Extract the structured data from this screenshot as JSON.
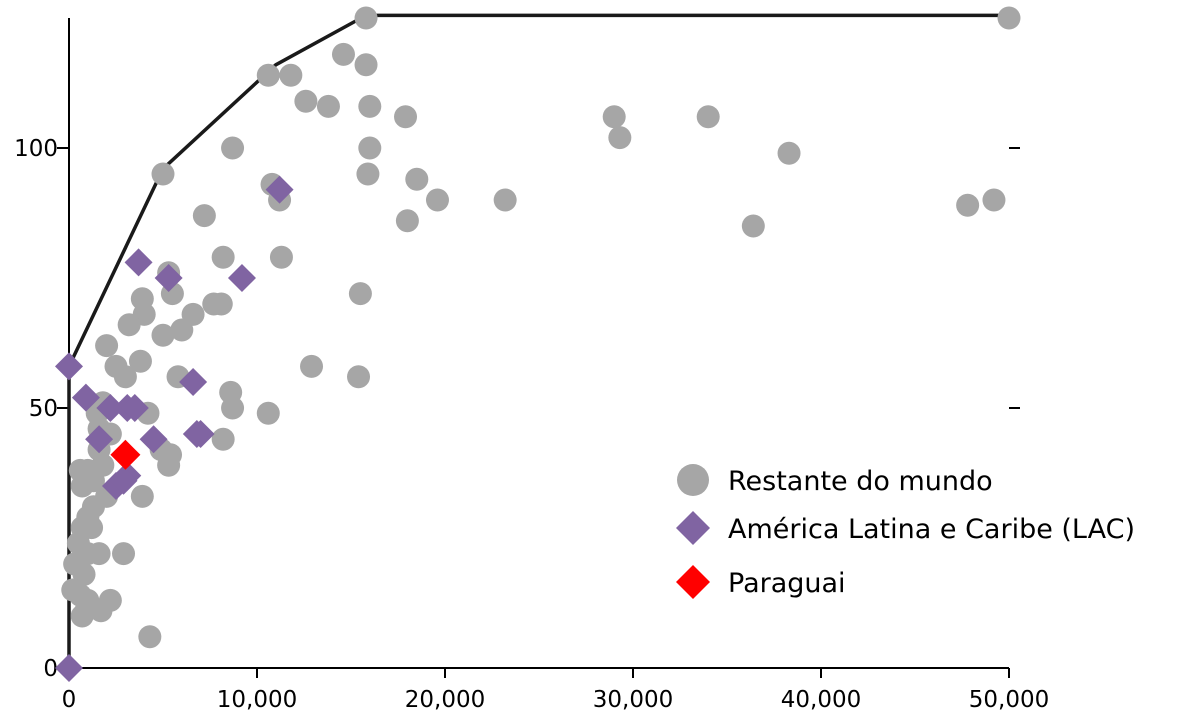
{
  "chart_data": {
    "type": "scatter",
    "title": "",
    "xlabel": "",
    "ylabel": "",
    "xlim": [
      0,
      50000
    ],
    "ylim": [
      0,
      125
    ],
    "x_ticks": [
      0,
      10000,
      20000,
      30000,
      40000,
      50000
    ],
    "x_tick_labels": [
      "0",
      "10,000",
      "20,000",
      "30,000",
      "40,000",
      "50,000"
    ],
    "y_ticks": [
      0,
      50,
      100
    ],
    "y_tick_labels": [
      "0",
      "50",
      "100"
    ],
    "grid": false,
    "legend_position": "bottom-right",
    "frontier": {
      "color": "#1a1a1a",
      "points": [
        [
          0,
          0
        ],
        [
          0,
          58
        ],
        [
          5000,
          96
        ],
        [
          11000,
          116
        ],
        [
          15800,
          125.5
        ],
        [
          50000,
          125.5
        ]
      ]
    },
    "series": [
      {
        "name": "Restante do mundo",
        "marker": "circle",
        "color": "#a6a6a6",
        "points": [
          [
            15800,
            125
          ],
          [
            50000,
            125
          ],
          [
            14600,
            118
          ],
          [
            15800,
            116
          ],
          [
            10600,
            114
          ],
          [
            11800,
            114
          ],
          [
            16000,
            108
          ],
          [
            12600,
            109
          ],
          [
            13800,
            108
          ],
          [
            17900,
            106
          ],
          [
            29000,
            106
          ],
          [
            29300,
            102
          ],
          [
            34000,
            106
          ],
          [
            38300,
            99
          ],
          [
            8700,
            100
          ],
          [
            5000,
            95
          ],
          [
            16000,
            100
          ],
          [
            15900,
            95
          ],
          [
            10800,
            93
          ],
          [
            11200,
            90
          ],
          [
            18500,
            94
          ],
          [
            19600,
            90
          ],
          [
            23200,
            90
          ],
          [
            49200,
            90
          ],
          [
            47800,
            89
          ],
          [
            18000,
            86
          ],
          [
            36400,
            85
          ],
          [
            7200,
            87
          ],
          [
            11300,
            79
          ],
          [
            8200,
            79
          ],
          [
            5300,
            76
          ],
          [
            15500,
            72
          ],
          [
            3900,
            71
          ],
          [
            5500,
            72
          ],
          [
            4000,
            68
          ],
          [
            6600,
            68
          ],
          [
            7700,
            70
          ],
          [
            8100,
            70
          ],
          [
            3200,
            66
          ],
          [
            5000,
            64
          ],
          [
            6000,
            65
          ],
          [
            2000,
            62
          ],
          [
            2500,
            58
          ],
          [
            3800,
            59
          ],
          [
            12900,
            58
          ],
          [
            5800,
            56
          ],
          [
            15400,
            56
          ],
          [
            3000,
            56
          ],
          [
            8600,
            53
          ],
          [
            8700,
            50
          ],
          [
            10600,
            49
          ],
          [
            1800,
            51
          ],
          [
            1500,
            49
          ],
          [
            4200,
            49
          ],
          [
            1600,
            46
          ],
          [
            8200,
            44
          ],
          [
            2200,
            45
          ],
          [
            4900,
            42
          ],
          [
            5400,
            41
          ],
          [
            5300,
            39
          ],
          [
            1600,
            42
          ],
          [
            1800,
            39
          ],
          [
            600,
            38
          ],
          [
            1000,
            38
          ],
          [
            1300,
            36
          ],
          [
            700,
            35
          ],
          [
            2000,
            33
          ],
          [
            3900,
            33
          ],
          [
            1300,
            31
          ],
          [
            1000,
            29
          ],
          [
            700,
            27
          ],
          [
            1200,
            27
          ],
          [
            500,
            24
          ],
          [
            1000,
            22
          ],
          [
            1600,
            22
          ],
          [
            2900,
            22
          ],
          [
            300,
            20
          ],
          [
            800,
            18
          ],
          [
            200,
            15
          ],
          [
            600,
            14
          ],
          [
            1000,
            13
          ],
          [
            2200,
            13
          ],
          [
            900,
            11
          ],
          [
            1700,
            11
          ],
          [
            700,
            10
          ],
          [
            4300,
            6
          ]
        ]
      },
      {
        "name": "América Latina e Caribe (LAC)",
        "marker": "diamond",
        "color": "#8064a2",
        "points": [
          [
            11200,
            92
          ],
          [
            3700,
            78
          ],
          [
            5300,
            75
          ],
          [
            9200,
            75
          ],
          [
            0,
            58
          ],
          [
            6600,
            55
          ],
          [
            900,
            52
          ],
          [
            2200,
            50
          ],
          [
            3100,
            50
          ],
          [
            3500,
            50
          ],
          [
            1600,
            44
          ],
          [
            4500,
            44
          ],
          [
            6800,
            45
          ],
          [
            7000,
            45
          ],
          [
            3100,
            37
          ],
          [
            2500,
            35
          ],
          [
            2900,
            36
          ],
          [
            0,
            0
          ]
        ]
      },
      {
        "name": "Paraguai",
        "marker": "diamond",
        "color": "#ff0000",
        "points": [
          [
            3000,
            41
          ]
        ]
      }
    ]
  }
}
